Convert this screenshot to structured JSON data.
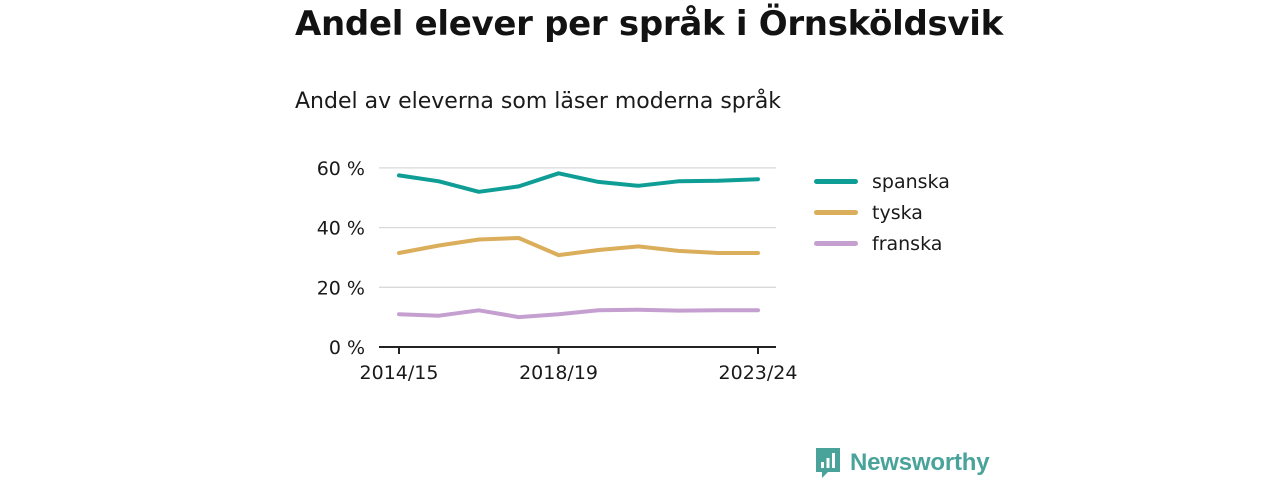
{
  "title": "Andel elever per språk i Örnsköldsvik",
  "subtitle": "Andel av eleverna som läser moderna språk",
  "brand": {
    "name": "Newsworthy",
    "logo_icon": "bar-chart-speech-bubble-icon"
  },
  "chart_data": {
    "type": "line",
    "x": [
      "2014/15",
      "2015/16",
      "2016/17",
      "2017/18",
      "2018/19",
      "2019/20",
      "2020/21",
      "2021/22",
      "2022/23",
      "2023/24"
    ],
    "x_tick_labels": [
      "2014/15",
      "2018/19",
      "2023/24"
    ],
    "y_tick_labels": [
      "0 %",
      "20 %",
      "40 %",
      "60 %"
    ],
    "y_ticks": [
      0,
      20,
      40,
      60
    ],
    "ylim": [
      0,
      62
    ],
    "grid": true,
    "legend_position": "right",
    "series": [
      {
        "name": "spanska",
        "color": "#0f9e95",
        "values": [
          57.5,
          55.5,
          52,
          53.8,
          58.2,
          55.3,
          54,
          55.5,
          55.7,
          56.2
        ]
      },
      {
        "name": "tyska",
        "color": "#dbae5b",
        "values": [
          31.5,
          34,
          36,
          36.5,
          30.8,
          32.5,
          33.7,
          32.2,
          31.5,
          31.5
        ]
      },
      {
        "name": "franska",
        "color": "#c49fd0",
        "values": [
          11,
          10.5,
          12.3,
          10,
          11,
          12.3,
          12.5,
          12.2,
          12.3,
          12.3
        ]
      }
    ]
  }
}
